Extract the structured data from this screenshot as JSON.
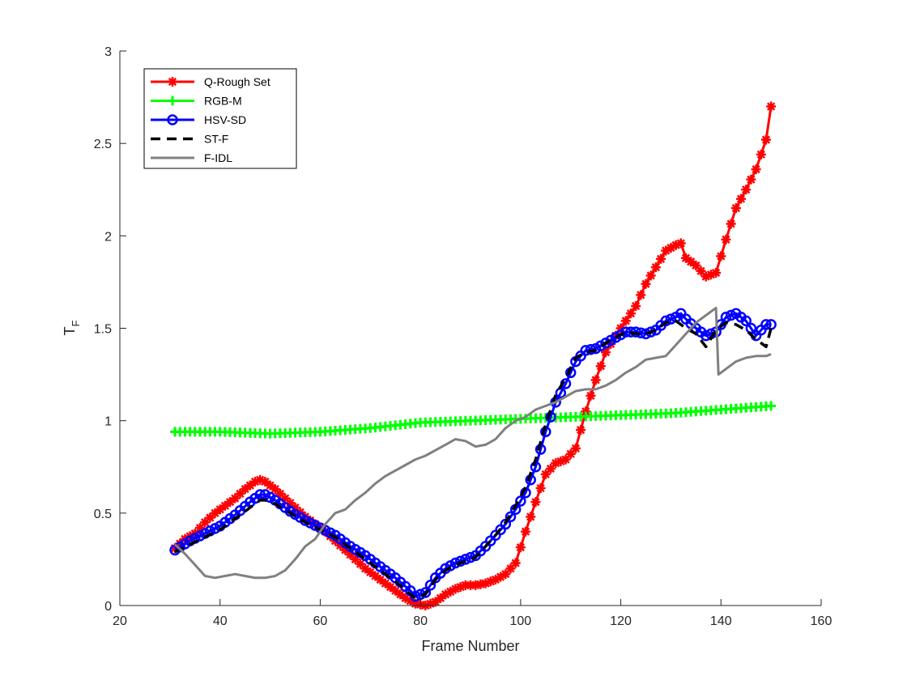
{
  "chart_data": {
    "type": "line",
    "title": "",
    "xlabel": "Frame Number",
    "ylabel": {
      "main": "T",
      "sub": "F"
    },
    "xlim": [
      20,
      160
    ],
    "ylim": [
      0,
      3
    ],
    "x_ticks": [
      20,
      40,
      60,
      80,
      100,
      120,
      140,
      160
    ],
    "y_ticks": [
      0,
      0.5,
      1,
      1.5,
      2,
      2.5,
      3
    ],
    "y_tick_labels": [
      "0",
      "0.5",
      "1",
      "1.5",
      "2",
      "2.5",
      "3"
    ],
    "grid": false,
    "legend_position": "top-left",
    "series": [
      {
        "name": "Q-Rough Set",
        "color": "#ff0000",
        "marker": "asterisk",
        "line_width": 3,
        "dash": "",
        "x": [
          31,
          33,
          35,
          37,
          39,
          41,
          43,
          45,
          47,
          48,
          49,
          51,
          53,
          55,
          57,
          59,
          61,
          63,
          65,
          67,
          69,
          71,
          73,
          75,
          77,
          79,
          81,
          83,
          85,
          87,
          89,
          91,
          93,
          95,
          97,
          99,
          101,
          103,
          105,
          107,
          109,
          111,
          113,
          115,
          117,
          119,
          121,
          123,
          125,
          127,
          129,
          131,
          132,
          133,
          135,
          137,
          139,
          141,
          143,
          145,
          147,
          149,
          150
        ],
        "y": [
          0.31,
          0.36,
          0.39,
          0.45,
          0.5,
          0.54,
          0.58,
          0.63,
          0.67,
          0.68,
          0.67,
          0.63,
          0.58,
          0.53,
          0.48,
          0.44,
          0.4,
          0.35,
          0.3,
          0.25,
          0.2,
          0.16,
          0.12,
          0.08,
          0.04,
          0.01,
          0.0,
          0.02,
          0.06,
          0.09,
          0.11,
          0.11,
          0.12,
          0.14,
          0.17,
          0.23,
          0.4,
          0.56,
          0.71,
          0.77,
          0.79,
          0.85,
          1.05,
          1.22,
          1.37,
          1.46,
          1.54,
          1.62,
          1.74,
          1.83,
          1.92,
          1.95,
          1.96,
          1.88,
          1.84,
          1.78,
          1.8,
          1.98,
          2.15,
          2.25,
          2.36,
          2.52,
          2.7
        ]
      },
      {
        "name": "RGB-M",
        "color": "#00ff00",
        "marker": "plus",
        "line_width": 3,
        "dash": "",
        "x": [
          31,
          40,
          50,
          60,
          70,
          80,
          90,
          100,
          110,
          120,
          130,
          140,
          150
        ],
        "y": [
          0.94,
          0.94,
          0.93,
          0.94,
          0.96,
          0.99,
          1.0,
          1.01,
          1.02,
          1.03,
          1.04,
          1.06,
          1.08
        ]
      },
      {
        "name": "HSV-SD",
        "color": "#0000ff",
        "marker": "circle",
        "line_width": 3,
        "dash": "",
        "x": [
          31,
          34,
          37,
          40,
          43,
          46,
          48,
          49,
          51,
          54,
          57,
          60,
          63,
          66,
          69,
          72,
          75,
          78,
          79,
          81,
          83,
          85,
          87,
          89,
          91,
          93,
          95,
          97,
          99,
          101,
          103,
          105,
          107,
          109,
          111,
          113,
          115,
          117,
          119,
          121,
          123,
          125,
          127,
          129,
          131,
          132,
          133,
          135,
          137,
          139,
          141,
          143,
          145,
          147,
          149,
          150
        ],
        "y": [
          0.3,
          0.35,
          0.39,
          0.43,
          0.49,
          0.56,
          0.6,
          0.6,
          0.57,
          0.51,
          0.46,
          0.42,
          0.38,
          0.32,
          0.27,
          0.21,
          0.15,
          0.08,
          0.05,
          0.07,
          0.15,
          0.2,
          0.23,
          0.25,
          0.27,
          0.32,
          0.38,
          0.44,
          0.52,
          0.61,
          0.75,
          0.94,
          1.1,
          1.2,
          1.32,
          1.38,
          1.39,
          1.42,
          1.45,
          1.48,
          1.48,
          1.47,
          1.49,
          1.54,
          1.56,
          1.58,
          1.55,
          1.5,
          1.46,
          1.48,
          1.56,
          1.58,
          1.54,
          1.46,
          1.52,
          1.52
        ]
      },
      {
        "name": "ST-F",
        "color": "#000000",
        "marker": "none",
        "line_width": 3.5,
        "dash": "12,8",
        "x": [
          31,
          34,
          37,
          40,
          43,
          46,
          48,
          49,
          51,
          54,
          57,
          60,
          63,
          66,
          69,
          72,
          75,
          78,
          79,
          81,
          83,
          85,
          87,
          89,
          91,
          93,
          95,
          97,
          99,
          101,
          103,
          105,
          107,
          109,
          111,
          113,
          115,
          117,
          119,
          121,
          123,
          125,
          127,
          129,
          131,
          133,
          135,
          137,
          139,
          141,
          143,
          145,
          147,
          149,
          150
        ],
        "y": [
          0.29,
          0.33,
          0.37,
          0.41,
          0.47,
          0.53,
          0.57,
          0.57,
          0.55,
          0.5,
          0.45,
          0.41,
          0.37,
          0.31,
          0.25,
          0.19,
          0.13,
          0.06,
          0.04,
          0.06,
          0.14,
          0.19,
          0.22,
          0.24,
          0.26,
          0.32,
          0.38,
          0.45,
          0.54,
          0.64,
          0.79,
          0.98,
          1.14,
          1.23,
          1.34,
          1.37,
          1.38,
          1.42,
          1.45,
          1.48,
          1.47,
          1.47,
          1.49,
          1.53,
          1.54,
          1.5,
          1.47,
          1.4,
          1.49,
          1.53,
          1.52,
          1.49,
          1.44,
          1.4,
          1.5
        ]
      },
      {
        "name": "F-IDL",
        "color": "#808080",
        "marker": "none",
        "line_width": 3,
        "dash": "",
        "x": [
          31,
          33,
          35,
          37,
          39,
          41,
          43,
          45,
          47,
          49,
          51,
          53,
          55,
          57,
          59,
          61,
          63,
          65,
          67,
          69,
          71,
          73,
          75,
          77,
          79,
          81,
          83,
          85,
          87,
          89,
          91,
          93,
          95,
          97,
          99,
          101,
          103,
          105,
          107,
          109,
          111,
          113,
          115,
          117,
          119,
          121,
          123,
          125,
          127,
          129,
          131,
          133,
          135,
          137,
          139,
          139.5,
          141,
          143,
          145,
          147,
          149,
          150
        ],
        "y": [
          0.33,
          0.28,
          0.22,
          0.16,
          0.15,
          0.16,
          0.17,
          0.16,
          0.15,
          0.15,
          0.16,
          0.19,
          0.25,
          0.32,
          0.36,
          0.44,
          0.5,
          0.52,
          0.57,
          0.61,
          0.66,
          0.7,
          0.73,
          0.76,
          0.79,
          0.81,
          0.84,
          0.87,
          0.9,
          0.89,
          0.86,
          0.87,
          0.9,
          0.96,
          1.0,
          1.02,
          1.06,
          1.08,
          1.1,
          1.13,
          1.16,
          1.17,
          1.17,
          1.19,
          1.22,
          1.26,
          1.29,
          1.33,
          1.34,
          1.35,
          1.41,
          1.47,
          1.53,
          1.57,
          1.61,
          1.25,
          1.28,
          1.32,
          1.34,
          1.35,
          1.35,
          1.36
        ]
      }
    ]
  }
}
